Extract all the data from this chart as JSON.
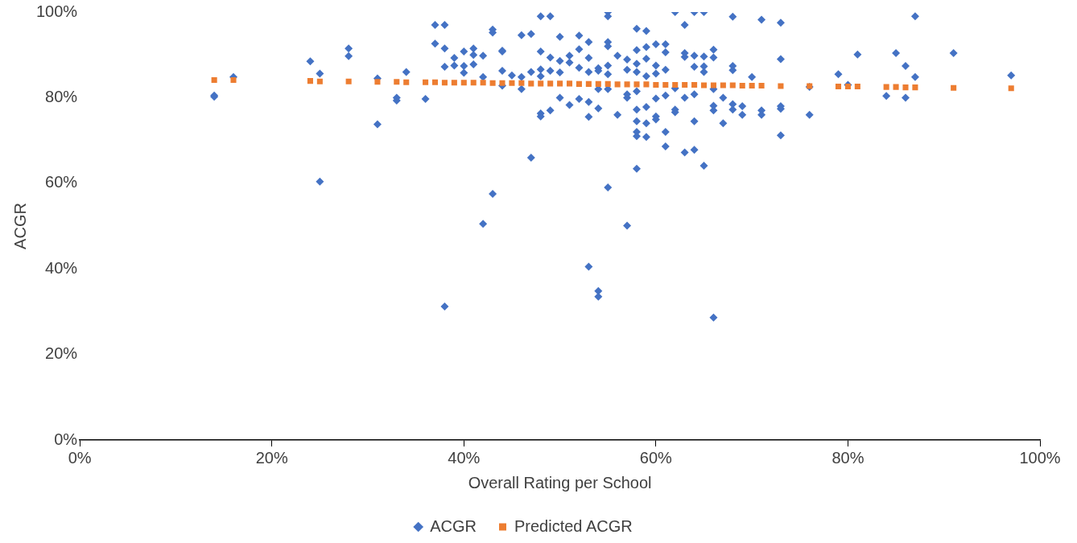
{
  "chart_data": {
    "type": "scatter",
    "xlabel": "Overall Rating per School",
    "ylabel": "ACGR",
    "xlim": [
      0,
      100
    ],
    "xticks": [
      {
        "value": 0,
        "label": "0%"
      },
      {
        "value": 20,
        "label": "20%"
      },
      {
        "value": 40,
        "label": "40%"
      },
      {
        "value": 60,
        "label": "60%"
      },
      {
        "value": 80,
        "label": "80%"
      },
      {
        "value": 100,
        "label": "100%"
      }
    ],
    "ylim": [
      0,
      100
    ],
    "yticks": [
      {
        "value": 0,
        "label": "0%"
      },
      {
        "value": 20,
        "label": "20%"
      },
      {
        "value": 40,
        "label": "40%"
      },
      {
        "value": 60,
        "label": "60%"
      },
      {
        "value": 80,
        "label": "80%"
      },
      {
        "value": 100,
        "label": "100%"
      }
    ],
    "grid": false,
    "legend": "bottom",
    "series": [
      {
        "name": "ACGR",
        "color": "#4472c4",
        "marker": "diamond",
        "x": [
          14,
          14,
          16,
          24,
          25,
          25,
          28,
          28,
          31,
          31,
          33,
          33,
          34,
          36,
          37,
          37,
          38,
          38,
          38,
          38,
          39,
          39,
          40,
          40,
          40,
          41,
          41,
          41,
          42,
          42,
          42,
          43,
          43,
          43,
          44,
          44,
          44,
          44,
          45,
          46,
          46,
          46,
          47,
          47,
          47,
          48,
          48,
          48,
          48,
          48,
          48,
          49,
          49,
          49,
          49,
          50,
          50,
          50,
          50,
          51,
          51,
          51,
          52,
          52,
          52,
          52,
          53,
          53,
          53,
          53,
          53,
          53,
          54,
          54,
          54,
          54,
          54,
          54,
          55,
          55,
          55,
          55,
          55,
          55,
          55,
          55,
          56,
          56,
          57,
          57,
          57,
          57,
          57,
          58,
          58,
          58,
          58,
          58,
          58,
          58,
          58,
          58,
          58,
          59,
          59,
          59,
          59,
          59,
          59,
          59,
          60,
          60,
          60,
          60,
          60,
          60,
          61,
          61,
          61,
          61,
          61,
          61,
          62,
          62,
          62,
          62,
          63,
          63,
          63,
          63,
          63,
          64,
          64,
          64,
          64,
          64,
          64,
          65,
          65,
          65,
          65,
          65,
          66,
          66,
          66,
          66,
          66,
          66,
          67,
          67,
          68,
          68,
          68,
          68,
          68,
          69,
          69,
          70,
          71,
          71,
          71,
          73,
          73,
          73,
          73,
          73,
          76,
          76,
          79,
          80,
          81,
          84,
          85,
          86,
          86,
          87,
          87,
          91,
          97
        ],
        "values": [
          80.2,
          80.5,
          84.8,
          88.5,
          85.6,
          60.4,
          91.5,
          89.7,
          73.8,
          84.5,
          79.3,
          80,
          86,
          79.7,
          92.6,
          97,
          97,
          91.5,
          87.2,
          31.2,
          89.3,
          87.5,
          90.8,
          85.8,
          87.4,
          90,
          91.5,
          87.8,
          89.8,
          84.8,
          50.5,
          95.9,
          95.2,
          57.5,
          91,
          90.8,
          86.3,
          82.8,
          85.2,
          94.6,
          84.8,
          82,
          94.9,
          66,
          86,
          99,
          90.8,
          86.6,
          85,
          76.3,
          75.6,
          99,
          89.4,
          86.3,
          77,
          94.2,
          88.6,
          85.9,
          80,
          89.8,
          88.2,
          78.3,
          94.5,
          91.3,
          87,
          79.7,
          93,
          89.3,
          86,
          79,
          75.5,
          40.5,
          86.9,
          86.3,
          82,
          77.5,
          34.8,
          33.5,
          100,
          99,
          93,
          92,
          87.5,
          85.5,
          82,
          59,
          89.8,
          76,
          88.9,
          86.5,
          80,
          80.8,
          50.1,
          96.1,
          91.1,
          87.9,
          86,
          81.5,
          77.2,
          74.5,
          72,
          71,
          63.4,
          95.6,
          91.8,
          89.1,
          85,
          77.8,
          74,
          70.8,
          92.5,
          87.5,
          85.6,
          79.8,
          75.6,
          74.9,
          92.5,
          90.6,
          86.5,
          80.5,
          72,
          68.6,
          100,
          82.2,
          77.2,
          76.6,
          97,
          90.4,
          89.5,
          80,
          67.2,
          100,
          89.8,
          87.2,
          80.8,
          74.5,
          67.8,
          100,
          89.6,
          87.3,
          86,
          64.1,
          91.2,
          89.4,
          82,
          77,
          78.1,
          28.6,
          80,
          74,
          98.9,
          87.4,
          86.4,
          78.5,
          77.2,
          78,
          76,
          84.8,
          98.2,
          77,
          76,
          97.5,
          89,
          78,
          77.4,
          71.2,
          82.5,
          76,
          85.5,
          83,
          90.1,
          80.4,
          90.4,
          87.4,
          80,
          99,
          84.8,
          90.4,
          85.2
        ]
      },
      {
        "name": "Predicted ACGR",
        "color": "#ed7d31",
        "marker": "square",
        "x": [
          14,
          16,
          24,
          25,
          28,
          31,
          33,
          34,
          36,
          37,
          38,
          39,
          40,
          41,
          42,
          43,
          44,
          45,
          46,
          47,
          48,
          49,
          50,
          51,
          52,
          53,
          54,
          55,
          56,
          57,
          58,
          59,
          60,
          61,
          62,
          63,
          64,
          65,
          66,
          67,
          68,
          69,
          70,
          71,
          73,
          76,
          79,
          80,
          81,
          84,
          85,
          86,
          87,
          91,
          97
        ],
        "values": [
          84.1,
          84.1,
          83.9,
          83.8,
          83.8,
          83.7,
          83.7,
          83.6,
          83.6,
          83.6,
          83.5,
          83.5,
          83.5,
          83.5,
          83.5,
          83.4,
          83.4,
          83.4,
          83.4,
          83.3,
          83.3,
          83.3,
          83.3,
          83.3,
          83.2,
          83.2,
          83.2,
          83.2,
          83.1,
          83.1,
          83.1,
          83.1,
          83,
          83,
          83,
          83,
          83,
          82.9,
          82.9,
          82.9,
          82.9,
          82.8,
          82.8,
          82.8,
          82.7,
          82.7,
          82.6,
          82.6,
          82.6,
          82.5,
          82.5,
          82.4,
          82.4,
          82.3,
          82.2
        ]
      }
    ]
  }
}
